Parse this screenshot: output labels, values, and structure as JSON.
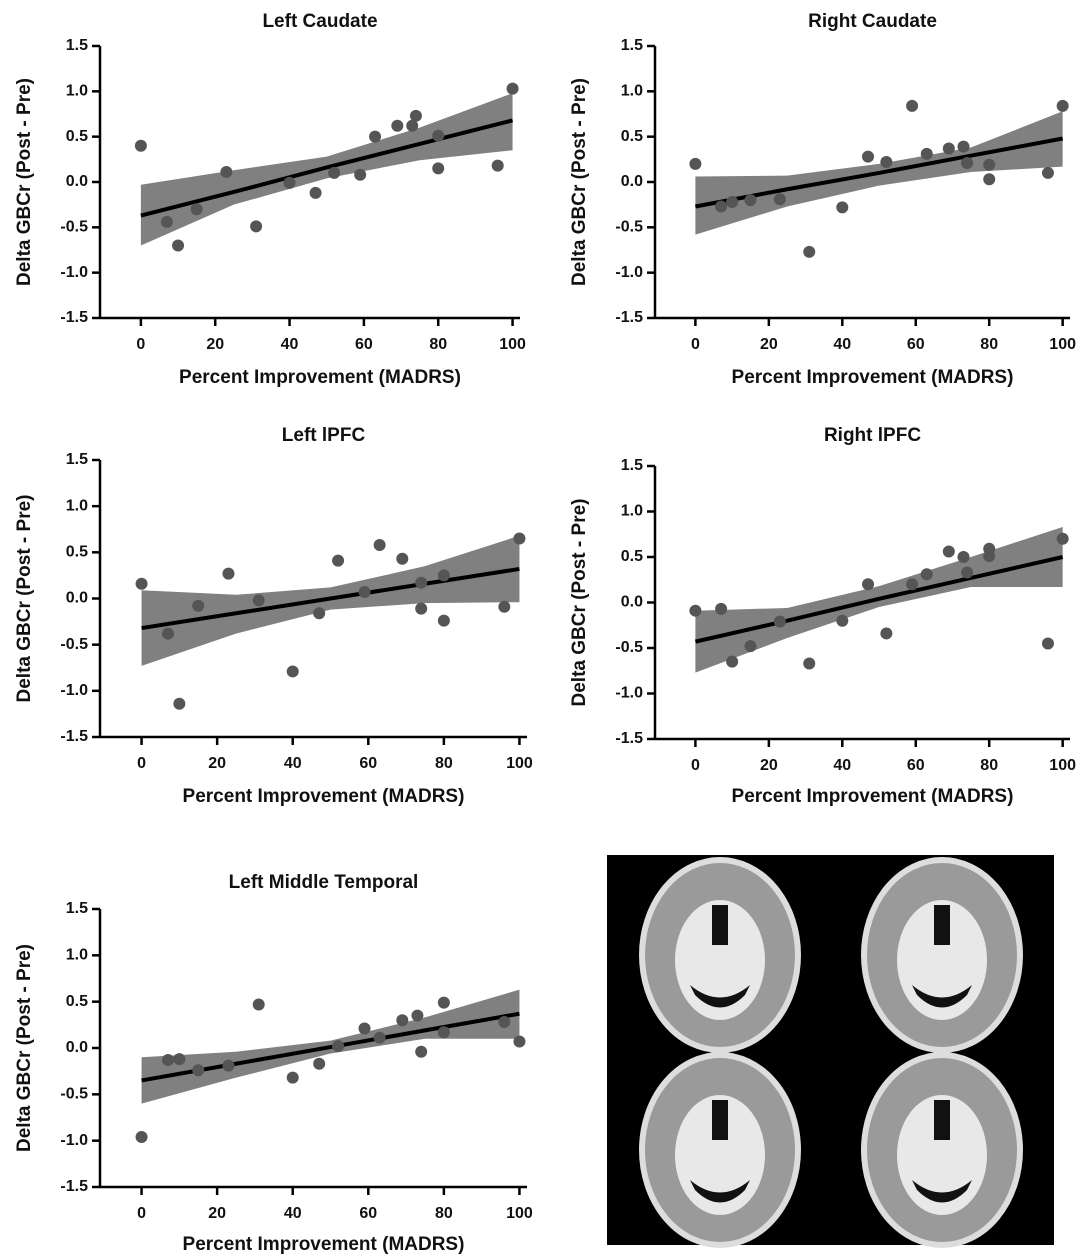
{
  "chart_data": [
    {
      "type": "scatter",
      "title": "Left Caudate",
      "x_label": "Percent Improvement (MADRS)",
      "y_label": "Delta GBCr (Post - Pre)",
      "xlim": [
        -11,
        102
      ],
      "ylim": [
        -1.5,
        1.5
      ],
      "xticks": [
        0,
        20,
        40,
        60,
        80,
        100
      ],
      "yticks": [
        -1.5,
        {
          "value": -1,
          "label": "-1.0"
        },
        -0.5,
        {
          "value": 0,
          "label": "0.0"
        },
        0.5,
        {
          "value": 1,
          "label": "1.0"
        },
        1.5
      ],
      "color": "#555555",
      "fit_color": "#000000",
      "band_color": "#808080",
      "x": [
        0,
        7,
        10,
        15,
        23,
        31,
        40,
        47,
        52,
        59,
        63,
        69,
        73,
        74,
        80,
        80,
        96,
        100
      ],
      "y": [
        0.4,
        -0.44,
        -0.7,
        -0.3,
        0.11,
        -0.49,
        -0.01,
        -0.12,
        0.1,
        0.08,
        0.5,
        0.62,
        0.62,
        0.73,
        0.51,
        0.15,
        0.18,
        1.03
      ],
      "fit": {
        "x": [
          0,
          25,
          50,
          75,
          100
        ],
        "y": [
          -0.37,
          -0.11,
          0.16,
          0.42,
          0.68
        ],
        "lower": [
          -0.7,
          -0.25,
          0.04,
          0.24,
          0.35
        ],
        "upper": [
          -0.03,
          0.13,
          0.28,
          0.6,
          0.98
        ]
      }
    },
    {
      "type": "scatter",
      "title": "Right Caudate",
      "x_label": "Percent Improvement (MADRS)",
      "y_label": "Delta GBCr (Post - Pre)",
      "xlim": [
        -11,
        102
      ],
      "ylim": [
        -1.5,
        1.5
      ],
      "xticks": [
        0,
        20,
        40,
        60,
        80,
        100
      ],
      "yticks": [
        -1.5,
        {
          "value": -1,
          "label": "-1.0"
        },
        -0.5,
        {
          "value": 0,
          "label": "0.0"
        },
        0.5,
        {
          "value": 1,
          "label": "1.0"
        },
        1.5
      ],
      "color": "#555555",
      "fit_color": "#000000",
      "band_color": "#808080",
      "x": [
        0,
        7,
        10,
        15,
        23,
        31,
        40,
        47,
        52,
        59,
        63,
        69,
        73,
        74,
        80,
        80,
        96,
        100
      ],
      "y": [
        0.2,
        -0.27,
        -0.22,
        -0.2,
        -0.19,
        -0.77,
        -0.28,
        0.28,
        0.22,
        0.84,
        0.31,
        0.37,
        0.39,
        0.21,
        0.19,
        0.03,
        0.1,
        0.84
      ],
      "fit": {
        "x": [
          0,
          25,
          50,
          75,
          100
        ],
        "y": [
          -0.27,
          -0.08,
          0.1,
          0.29,
          0.48
        ],
        "lower": [
          -0.58,
          -0.27,
          -0.04,
          0.11,
          0.17
        ],
        "upper": [
          0.06,
          0.07,
          0.2,
          0.38,
          0.78
        ]
      }
    },
    {
      "type": "scatter",
      "title": "Left lPFC",
      "x_label": "Percent Improvement (MADRS)",
      "y_label": "Delta GBCr (Post - Pre)",
      "xlim": [
        -11,
        102
      ],
      "ylim": [
        -1.5,
        1.5
      ],
      "xticks": [
        0,
        20,
        40,
        60,
        80,
        100
      ],
      "yticks": [
        -1.5,
        {
          "value": -1,
          "label": "-1.0"
        },
        -0.5,
        {
          "value": 0,
          "label": "0.0"
        },
        0.5,
        {
          "value": 1,
          "label": "1.0"
        },
        1.5
      ],
      "color": "#555555",
      "fit_color": "#000000",
      "band_color": "#808080",
      "x": [
        0,
        7,
        10,
        15,
        23,
        31,
        40,
        47,
        52,
        59,
        63,
        69,
        74,
        74,
        80,
        80,
        96,
        100
      ],
      "y": [
        0.16,
        -0.38,
        -1.14,
        -0.08,
        0.27,
        -0.02,
        -0.79,
        -0.16,
        0.41,
        0.07,
        0.58,
        0.43,
        0.17,
        -0.11,
        0.25,
        -0.24,
        -0.09,
        0.65
      ],
      "fit": {
        "x": [
          0,
          25,
          50,
          75,
          100
        ],
        "y": [
          -0.32,
          -0.16,
          0.0,
          0.16,
          0.32
        ],
        "lower": [
          -0.73,
          -0.38,
          -0.12,
          -0.05,
          -0.04
        ],
        "upper": [
          0.09,
          0.04,
          0.12,
          0.35,
          0.68
        ]
      }
    },
    {
      "type": "scatter",
      "title": "Right lPFC",
      "x_label": "Percent Improvement (MADRS)",
      "y_label": "Delta GBCr (Post - Pre)",
      "xlim": [
        -11,
        102
      ],
      "ylim": [
        -1.5,
        1.5
      ],
      "xticks": [
        0,
        20,
        40,
        60,
        80,
        100
      ],
      "yticks": [
        -1.5,
        {
          "value": -1,
          "label": "-1.0"
        },
        -0.5,
        {
          "value": 0,
          "label": "0.0"
        },
        0.5,
        {
          "value": 1,
          "label": "1.0"
        },
        1.5
      ],
      "color": "#555555",
      "fit_color": "#000000",
      "band_color": "#808080",
      "x": [
        0,
        7,
        10,
        15,
        23,
        31,
        40,
        47,
        52,
        59,
        63,
        69,
        73,
        74,
        80,
        80,
        96,
        100
      ],
      "y": [
        -0.09,
        -0.07,
        -0.65,
        -0.48,
        -0.21,
        -0.67,
        -0.2,
        0.2,
        -0.34,
        0.2,
        0.31,
        0.56,
        0.5,
        0.33,
        0.59,
        0.51,
        -0.45,
        0.7
      ],
      "fit": {
        "x": [
          0,
          25,
          50,
          75,
          100
        ],
        "y": [
          -0.43,
          -0.2,
          0.04,
          0.27,
          0.5
        ],
        "lower": [
          -0.77,
          -0.39,
          -0.05,
          0.17,
          0.17
        ],
        "upper": [
          -0.09,
          -0.06,
          0.18,
          0.5,
          0.83
        ]
      }
    },
    {
      "type": "scatter",
      "title": "Left Middle Temporal",
      "x_label": "Percent Improvement (MADRS)",
      "y_label": "Delta GBCr (Post - Pre)",
      "xlim": [
        -11,
        102
      ],
      "ylim": [
        -1.5,
        1.5
      ],
      "xticks": [
        0,
        20,
        40,
        60,
        80,
        100
      ],
      "yticks": [
        -1.5,
        {
          "value": -1,
          "label": "-1.0"
        },
        -0.5,
        {
          "value": 0,
          "label": "0.0"
        },
        0.5,
        {
          "value": 1,
          "label": "1.0"
        },
        1.5
      ],
      "color": "#555555",
      "fit_color": "#000000",
      "band_color": "#808080",
      "x": [
        0,
        7,
        10,
        15,
        23,
        31,
        40,
        47,
        52,
        59,
        63,
        69,
        73,
        74,
        80,
        80,
        96,
        100
      ],
      "y": [
        -0.96,
        -0.13,
        -0.12,
        -0.24,
        -0.19,
        0.47,
        -0.32,
        -0.17,
        0.02,
        0.21,
        0.11,
        0.3,
        0.35,
        -0.04,
        0.49,
        0.17,
        0.28,
        0.07
      ],
      "fit": {
        "x": [
          0,
          25,
          50,
          75,
          100
        ],
        "y": [
          -0.35,
          -0.17,
          0.01,
          0.19,
          0.37
        ],
        "lower": [
          -0.6,
          -0.32,
          -0.06,
          0.1,
          0.1
        ],
        "upper": [
          -0.1,
          -0.04,
          0.08,
          0.33,
          0.63
        ]
      }
    }
  ]
}
